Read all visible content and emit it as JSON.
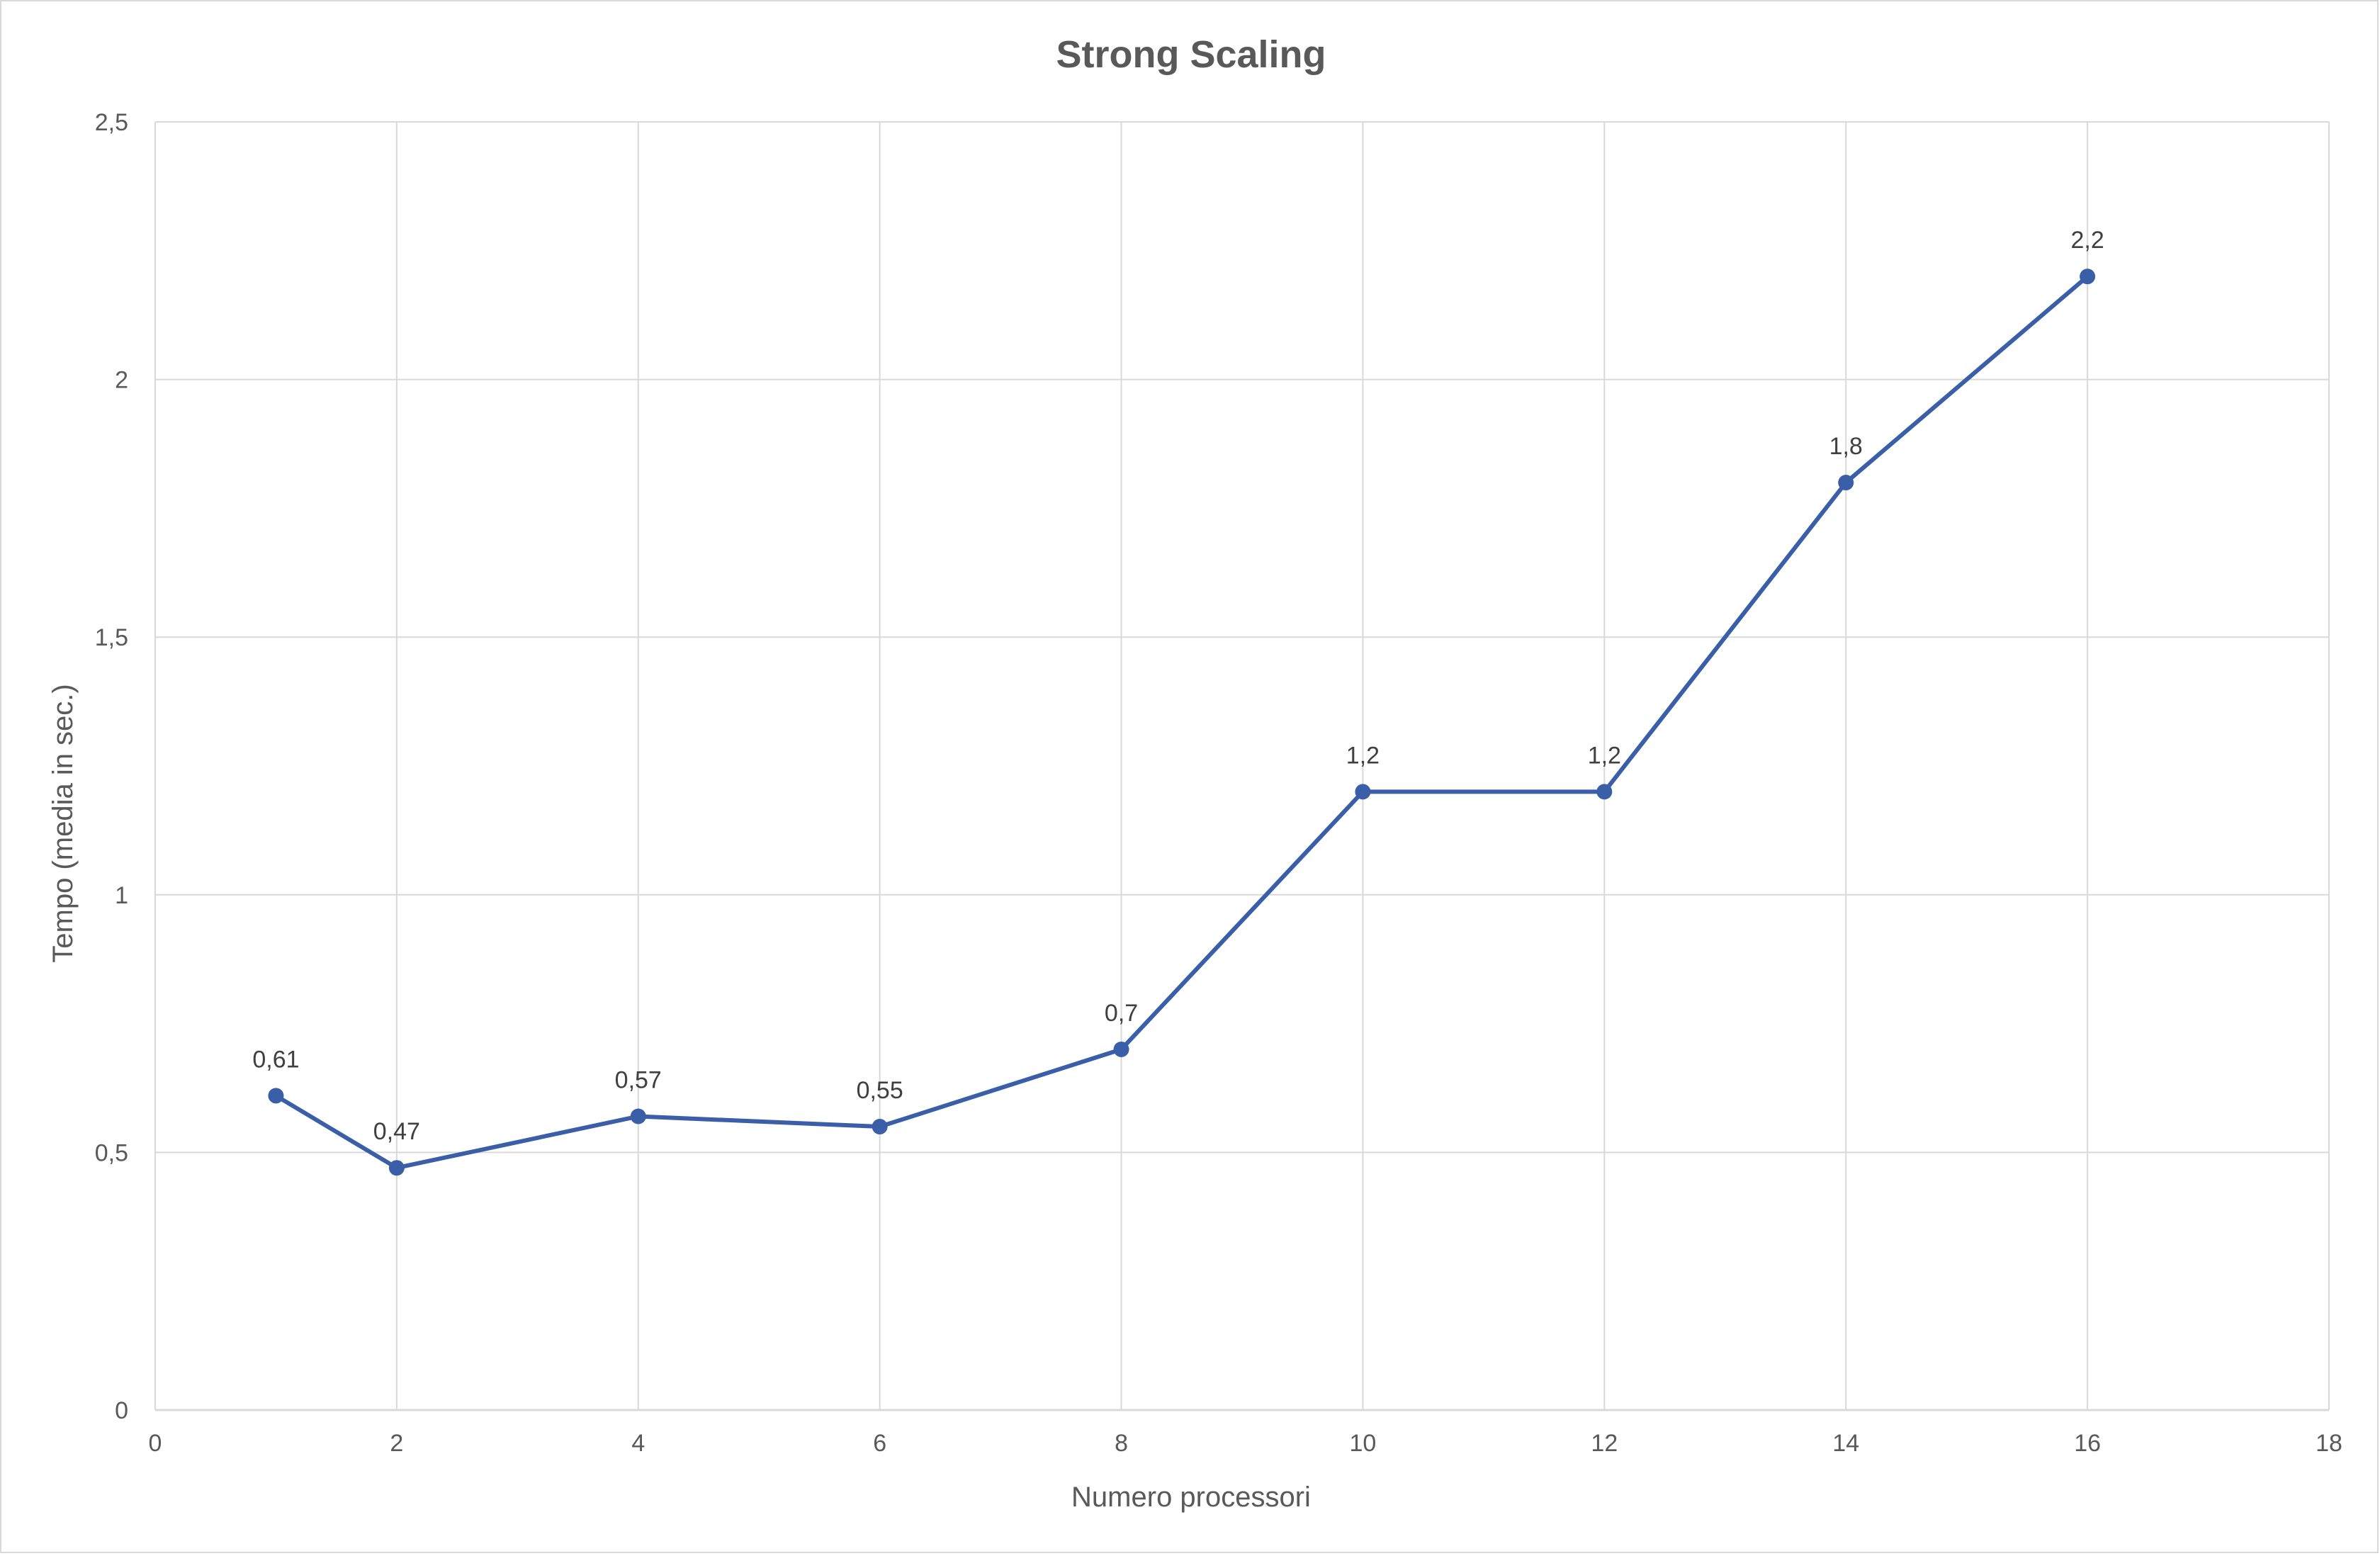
{
  "chart_data": {
    "type": "scatter-line",
    "title": "Strong Scaling",
    "xlabel": "Numero processori",
    "ylabel": "Tempo (media in sec.)",
    "xlim": [
      0,
      18
    ],
    "ylim": [
      0,
      2.5
    ],
    "x_ticks": [
      0,
      2,
      4,
      6,
      8,
      10,
      12,
      14,
      16,
      18
    ],
    "x_tick_labels": [
      "0",
      "2",
      "4",
      "6",
      "8",
      "10",
      "12",
      "14",
      "16",
      "18"
    ],
    "y_ticks": [
      0,
      0.5,
      1,
      1.5,
      2,
      2.5
    ],
    "y_tick_labels": [
      "0",
      "0,5",
      "1",
      "1,5",
      "2",
      "2,5"
    ],
    "grid": true,
    "legend": "none",
    "series": [
      {
        "name": "Tempo",
        "color": "#3a5fa8",
        "x": [
          1,
          2,
          4,
          6,
          8,
          10,
          12,
          14,
          16
        ],
        "values": [
          0.61,
          0.47,
          0.57,
          0.55,
          0.7,
          1.2,
          1.2,
          1.8,
          2.2
        ],
        "data_labels": [
          "0,61",
          "0,47",
          "0,57",
          "0,55",
          "0,7",
          "1,2",
          "1,2",
          "1,8",
          "2,2"
        ]
      }
    ],
    "grid_color": "#d9d9d9"
  }
}
